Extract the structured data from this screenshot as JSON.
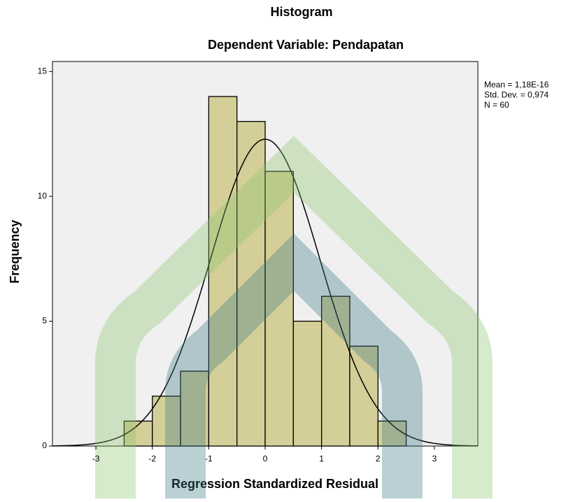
{
  "chart_data": {
    "type": "histogram",
    "title": "Histogram",
    "subtitle": "Dependent Variable: Pendapatan",
    "x_label": "Regression Standardized Residual",
    "y_label": "Frequency",
    "bins": [
      -2.5,
      -2,
      -1.5,
      -1,
      -0.5,
      0,
      0.5,
      1,
      1.5,
      2,
      2.5
    ],
    "counts": [
      1,
      2,
      3,
      14,
      13,
      11,
      5,
      6,
      4,
      1
    ],
    "color": "#d4cf98",
    "xlim": [
      -3.77,
      3.77
    ],
    "ylim": [
      0,
      15.4
    ],
    "xticks": [
      -3,
      -2,
      -1,
      0,
      1,
      2,
      3
    ],
    "yticks": [
      0,
      5,
      10,
      15
    ],
    "normal_curve": {
      "mean": 1.18e-16,
      "sd": 0.974,
      "n": 60
    },
    "stats_text": [
      "Mean = 1,18E-16",
      "Std. Dev. = 0,974",
      "N = 60"
    ]
  }
}
